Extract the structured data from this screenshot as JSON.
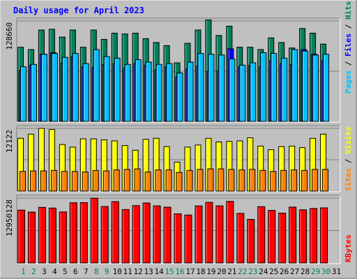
{
  "chart_data": {
    "type": "bar",
    "title": "Daily usage for April 2023",
    "categories": [
      "1",
      "2",
      "3",
      "4",
      "5",
      "6",
      "7",
      "8",
      "9",
      "10",
      "11",
      "12",
      "13",
      "14",
      "15",
      "16",
      "17",
      "18",
      "19",
      "20",
      "21",
      "22",
      "23",
      "24",
      "25",
      "26",
      "27",
      "28",
      "29",
      "30",
      "31"
    ],
    "weekend_days": [
      "1",
      "2",
      "8",
      "9",
      "15",
      "16",
      "22",
      "23",
      "29",
      "30"
    ],
    "panels": [
      {
        "id": "hits-files-pages",
        "max_label": "128660",
        "ylim": [
          0,
          128660
        ],
        "grid": true,
        "axis_legend": [
          "Pages",
          "Files",
          "Hits"
        ],
        "series": [
          {
            "name": "Hits",
            "color": "#00805c",
            "values": [
              95000,
              92000,
              117000,
              118000,
              108000,
              117000,
              95000,
              117000,
              105000,
              113000,
              112000,
              113000,
              106000,
              101000,
              97000,
              75000,
              100000,
              117000,
              130000,
              110000,
              122000,
              95000,
              95000,
              92000,
              107000,
              101000,
              94000,
              119000,
              113000,
              99000,
              0
            ]
          },
          {
            "name": "Files",
            "color": "#0000ff",
            "values": [
              65000,
              72000,
              86000,
              88000,
              75000,
              83000,
              70000,
              69000,
              73000,
              74000,
              68000,
              74000,
              72000,
              66000,
              70000,
              57000,
              67000,
              71000,
              64000,
              65000,
              93000,
              70000,
              72000,
              70000,
              78000,
              74000,
              73000,
              92000,
              86000,
              78000,
              0
            ]
          },
          {
            "name": "Pages",
            "color": "#00c0ff",
            "values": [
              70000,
              73000,
              86000,
              87000,
              82000,
              87000,
              74000,
              92000,
              83000,
              81000,
              73000,
              79000,
              76000,
              73000,
              74000,
              62000,
              76000,
              87000,
              86000,
              85000,
              80000,
              72000,
              75000,
              88000,
              87000,
              81000,
              92000,
              90000,
              85000,
              86000,
              0
            ]
          }
        ]
      },
      {
        "id": "visits-sites",
        "max_label": "12122",
        "ylim": [
          0,
          12122
        ],
        "grid": true,
        "axis_legend": [
          "Sites",
          "Visits"
        ],
        "series": [
          {
            "name": "Visits",
            "color": "#ffff00",
            "values": [
              10200,
              11000,
              12122,
              11900,
              9000,
              8500,
              10100,
              10100,
              9900,
              9700,
              8800,
              7900,
              10000,
              10200,
              8600,
              5600,
              8500,
              8900,
              10200,
              9500,
              9600,
              9700,
              10300,
              8700,
              8000,
              8600,
              8700,
              8400,
              10200,
              11000,
              0
            ]
          },
          {
            "name": "Sites",
            "color": "#ff8000",
            "values": [
              3800,
              3900,
              3900,
              4000,
              3800,
              3800,
              3700,
              4000,
              3900,
              4100,
              4200,
              4300,
              3700,
              4100,
              4100,
              3600,
              4000,
              4200,
              4300,
              4300,
              4200,
              4100,
              4200,
              4000,
              3800,
              4000,
              4100,
              4000,
              4200,
              4200,
              0
            ]
          }
        ]
      },
      {
        "id": "kbytes",
        "max_label": "12950128",
        "ylim": [
          0,
          12950128
        ],
        "grid": true,
        "axis_legend": [
          "KBytes"
        ],
        "series": [
          {
            "name": "KBytes",
            "color": "#ff0000",
            "values": [
              10560000,
              10160000,
              11100000,
              10960000,
              10190000,
              12020000,
              12050000,
              12950128,
              11270000,
              12250000,
              10670000,
              11450000,
              11980000,
              11400000,
              11140000,
              9810000,
              9570000,
              11390000,
              12100000,
              11400000,
              12300000,
              9900000,
              8700000,
              11240000,
              10500000,
              9950000,
              11160000,
              10610000,
              10880000,
              11000000,
              0
            ]
          }
        ]
      }
    ],
    "colors": {
      "background": "#c0c0c0",
      "panel": "#c0c0c0",
      "title": "#0000ff",
      "label": "#000000",
      "day_weekday": "#000000",
      "day_weekend": "#00805c"
    }
  }
}
